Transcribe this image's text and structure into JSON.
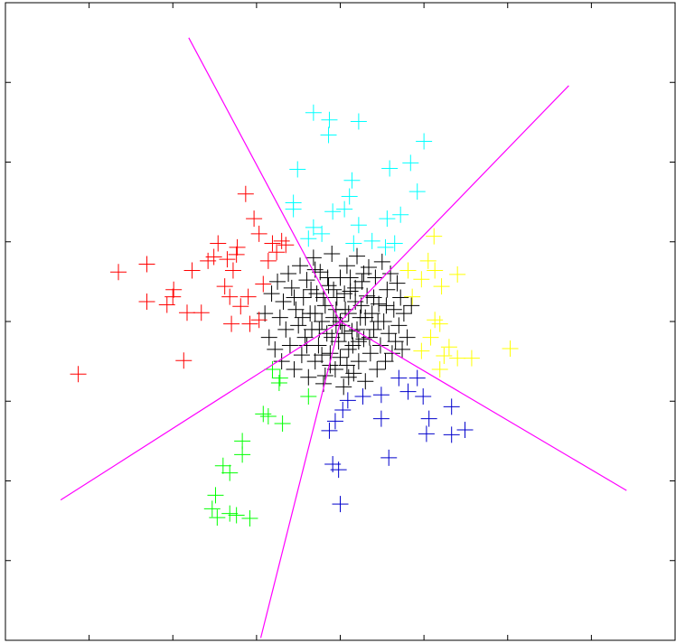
{
  "chart_data": {
    "type": "scatter",
    "xlim": [
      -4,
      4
    ],
    "ylim": [
      -4,
      4
    ],
    "xticks": [
      -3,
      -2,
      -1,
      0,
      1,
      2,
      3
    ],
    "yticks": [
      -3,
      -2,
      -1,
      0,
      1,
      2,
      3
    ],
    "grid": false,
    "series": [
      {
        "color": "#000000",
        "x": [
          -0.9,
          -0.85,
          -0.82,
          -0.78,
          -0.75,
          -0.72,
          -0.7,
          -0.68,
          -0.65,
          -0.62,
          -0.6,
          -0.58,
          -0.55,
          -0.53,
          -0.5,
          -0.48,
          -0.46,
          -0.44,
          -0.42,
          -0.4,
          -0.38,
          -0.36,
          -0.34,
          -0.32,
          -0.3,
          -0.28,
          -0.26,
          -0.24,
          -0.22,
          -0.2,
          -0.18,
          -0.16,
          -0.14,
          -0.12,
          -0.1,
          -0.08,
          -0.06,
          -0.04,
          -0.02,
          0,
          0.02,
          0.04,
          0.06,
          0.08,
          0.1,
          0.12,
          0.14,
          0.16,
          0.18,
          0.2,
          0.22,
          0.24,
          0.26,
          0.28,
          0.3,
          0.32,
          0.34,
          0.36,
          0.38,
          0.4,
          0.42,
          0.44,
          0.46,
          0.48,
          0.5,
          0.52,
          0.54,
          0.56,
          0.58,
          0.6,
          0.62,
          0.64,
          0.66,
          0.68,
          0.7,
          0.72,
          0.74,
          0.76,
          0.8,
          0.85,
          -0.3,
          -0.2,
          -0.1,
          0.1,
          0.2,
          0.05,
          -0.15,
          0.25,
          -0.25,
          0.15,
          -0.05,
          0.3,
          -0.35,
          0.35,
          0,
          -0.12,
          0.12,
          -0.45,
          0.45,
          0.05,
          -0.08,
          0.18,
          -0.22,
          0.22,
          -0.4,
          0.4,
          0,
          -0.05,
          0.08,
          -0.3,
          0.28,
          -0.55,
          0.55,
          -0.18,
          0.1
        ],
        "values": [
          0.1,
          -0.2,
          0.35,
          -0.35,
          0.5,
          0.05,
          -0.5,
          0.25,
          -0.1,
          0.6,
          -0.3,
          0.42,
          -0.6,
          0.15,
          -0.05,
          0.7,
          -0.42,
          0.3,
          -0.2,
          0.52,
          -0.7,
          0.1,
          -0.1,
          0.8,
          -0.5,
          0.35,
          -0.3,
          0.62,
          0,
          -0.78,
          0.2,
          -0.15,
          0.45,
          -0.4,
          0.85,
          0.05,
          -0.6,
          0.3,
          -0.25,
          0.55,
          -0.05,
          -0.82,
          0.15,
          0.7,
          -0.35,
          0.38,
          -0.12,
          -0.65,
          0.25,
          0.82,
          -0.5,
          0.05,
          0.5,
          -0.22,
          -0.75,
          0.32,
          0.68,
          -0.4,
          0.1,
          -0.1,
          0.55,
          -0.6,
          0.22,
          -0.3,
          0.75,
          0,
          -0.5,
          0.4,
          -0.15,
          0.6,
          -0.4,
          0.15,
          -0.25,
          0.48,
          -0.05,
          0.3,
          -0.35,
          0.1,
          -0.2,
          0.2,
          0.1,
          0.3,
          -0.2,
          0.1,
          -0.1,
          0.35,
          0.55,
          0.2,
          -0.1,
          -0.3,
          0.15,
          0.05,
          0.4,
          -0.2,
          -0.45,
          -0.55,
          0.55,
          0.05,
          0,
          -0.15,
          0.4,
          0.42,
          -0.42,
          -0.25,
          -0.3,
          0.3,
          0,
          -0.05,
          -0.55,
          0.65,
          0.6,
          0.3,
          0.2,
          -0.68,
          -0.7
        ]
      },
      {
        "color": "#ff0000",
        "x": [
          -3.13,
          -2.65,
          -2.31,
          -2.31,
          -2.07,
          -1.99,
          -1.87,
          -1.83,
          -1.77,
          -1.66,
          -1.58,
          -1.46,
          -1.38,
          -1.32,
          -1.3,
          -1.28,
          -1.23,
          -1.13,
          -1.08,
          -1.03,
          -0.97,
          -0.92,
          -0.86,
          -0.81,
          -0.76,
          -0.97,
          -1.1,
          -1.19,
          -1.24,
          -1.35,
          -0.65,
          -0.7,
          -1.51,
          -2.0
        ],
        "values": [
          -0.66,
          0.62,
          0.72,
          0.25,
          0.21,
          0.4,
          -0.49,
          0.11,
          0.64,
          0.11,
          0.76,
          0.98,
          0.44,
          0.31,
          -0.03,
          0.64,
          0.93,
          1.6,
          -0.03,
          1.29,
          1.1,
          0.47,
          0.76,
          0.98,
          0.87,
          0.02,
          0.31,
          0.19,
          0.84,
          0.78,
          0.96,
          1.01,
          0.81,
          0.31
        ]
      },
      {
        "color": "#00ffff",
        "x": [
          -0.32,
          -0.13,
          -0.14,
          0.22,
          1.0,
          0.84,
          0.59,
          -0.51,
          0.14,
          0.92,
          0.11,
          -0.56,
          -0.09,
          0.05,
          0.72,
          0.56,
          -0.32,
          -0.22,
          0.22,
          0.54,
          0.65,
          0.38,
          0.16,
          -0.38,
          -0.56
        ],
        "values": [
          2.62,
          2.53,
          2.34,
          2.51,
          2.26,
          1.99,
          1.92,
          1.91,
          1.77,
          1.63,
          1.57,
          1.49,
          1.38,
          1.41,
          1.34,
          1.29,
          1.18,
          1.1,
          1.21,
          0.93,
          0.98,
          1.01,
          0.98,
          1.04,
          1.41
        ]
      },
      {
        "color": "#ffff00",
        "x": [
          1.12,
          0.81,
          1.05,
          0.97,
          1.13,
          1.4,
          1.21,
          0.86,
          1.13,
          1.19,
          1.3,
          0.97,
          1.4,
          1.57,
          2.03,
          1.19,
          1.24,
          1.08
        ],
        "values": [
          1.07,
          0.64,
          0.76,
          0.53,
          0.64,
          0.59,
          0.44,
          0.31,
          0.02,
          -0.03,
          -0.32,
          -0.37,
          -0.46,
          -0.46,
          -0.34,
          -0.6,
          -0.43,
          -0.2
        ]
      },
      {
        "color": "#0000cc",
        "x": [
          0,
          0.58,
          -0.09,
          -0.02,
          -0.13,
          -0.06,
          0.03,
          0.09,
          0.27,
          0.49,
          0.81,
          0.99,
          1.06,
          1.03,
          1.33,
          1.49,
          1.33,
          0.92,
          0.7,
          0.49
        ],
        "values": [
          -2.29,
          -1.71,
          -1.79,
          -1.86,
          -1.37,
          -1.25,
          -1.11,
          -0.99,
          -0.94,
          -1.22,
          -0.88,
          -0.94,
          -1.22,
          -1.41,
          -1.42,
          -1.36,
          -1.07,
          -0.71,
          -0.71,
          -0.92
        ]
      },
      {
        "color": "#00ff00",
        "x": [
          -0.72,
          -0.73,
          -0.38,
          -0.86,
          -0.92,
          -0.69,
          -1.17,
          -1.17,
          -1.4,
          -1.32,
          -1.49,
          -1.53,
          -1.47,
          -1.32,
          -1.24,
          -1.08,
          -0.81
        ],
        "values": [
          -0.71,
          -0.77,
          -0.94,
          -1.19,
          -1.16,
          -1.28,
          -1.5,
          -1.67,
          -1.81,
          -1.9,
          -2.18,
          -2.35,
          -2.46,
          -2.41,
          -2.43,
          -2.47,
          -0.6
        ]
      }
    ],
    "lines": [
      {
        "color": "#ff00ff",
        "x": [
          0,
          -1.81
        ],
        "values": [
          0,
          3.56
        ]
      },
      {
        "color": "#ff00ff",
        "x": [
          0,
          2.73
        ],
        "values": [
          0,
          2.96
        ]
      },
      {
        "color": "#ff00ff",
        "x": [
          0,
          3.42
        ],
        "values": [
          0,
          -2.12
        ]
      },
      {
        "color": "#ff00ff",
        "x": [
          0,
          -0.95
        ],
        "values": [
          0,
          -3.97
        ]
      },
      {
        "color": "#ff00ff",
        "x": [
          0,
          -3.34
        ],
        "values": [
          0,
          -2.24
        ]
      }
    ]
  }
}
